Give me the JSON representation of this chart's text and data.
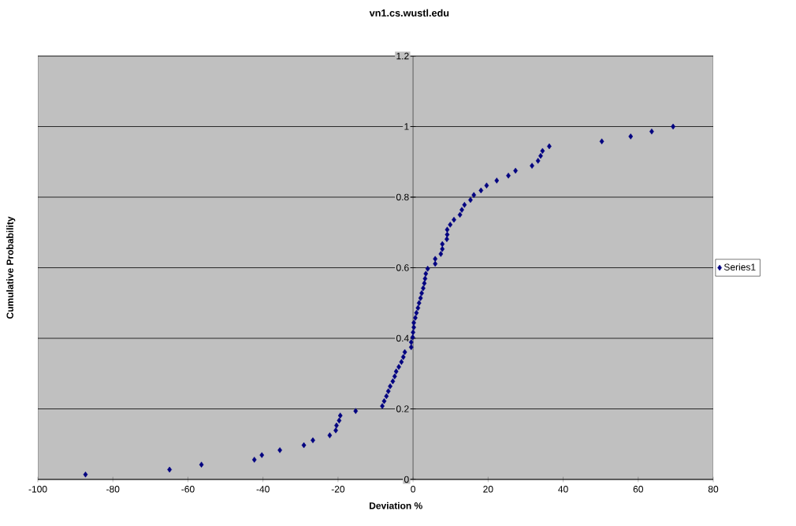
{
  "chart_data": {
    "type": "scatter",
    "title": "vn1.cs.wustl.edu",
    "xlabel": "Deviation %",
    "ylabel": "Cumulative Probability",
    "xlim": [
      -100,
      80
    ],
    "ylim": [
      0,
      1.2
    ],
    "xticks": [
      -100,
      -80,
      -60,
      -40,
      -20,
      0,
      20,
      40,
      60,
      80
    ],
    "yticks": [
      0,
      0.2,
      0.4,
      0.6,
      0.8,
      1,
      1.2
    ],
    "grid": "y",
    "legend": "right",
    "marker": "diamond",
    "series": [
      {
        "name": "Series1",
        "color": "#000080",
        "x": [
          -87.3,
          -64.9,
          -56.4,
          -42.3,
          -40.3,
          -35.5,
          -29.1,
          -26.7,
          -22.2,
          -20.6,
          -20.4,
          -19.7,
          -19.4,
          -15.3,
          -8.2,
          -7.7,
          -7.1,
          -6.6,
          -6.1,
          -5.4,
          -4.9,
          -4.5,
          -3.8,
          -3.1,
          -2.6,
          -2.2,
          -0.5,
          -0.5,
          -0.1,
          0,
          0.2,
          0.2,
          0.6,
          0.9,
          1.3,
          1.6,
          2.0,
          2.3,
          2.7,
          3.0,
          3.2,
          3.4,
          3.9,
          5.9,
          5.9,
          7.4,
          7.8,
          7.8,
          9.0,
          9.1,
          9.1,
          9.9,
          10.9,
          12.5,
          13.0,
          13.7,
          15.3,
          16.2,
          18.1,
          19.6,
          22.3,
          25.4,
          27.3,
          31.7,
          33.3,
          34.0,
          34.5,
          36.3,
          50.3,
          58.0,
          63.6,
          69.3
        ],
        "values": [
          0.014,
          0.028,
          0.042,
          0.056,
          0.069,
          0.083,
          0.097,
          0.111,
          0.125,
          0.139,
          0.153,
          0.167,
          0.181,
          0.194,
          0.208,
          0.222,
          0.236,
          0.25,
          0.264,
          0.278,
          0.292,
          0.306,
          0.319,
          0.333,
          0.347,
          0.361,
          0.375,
          0.389,
          0.403,
          0.417,
          0.431,
          0.444,
          0.458,
          0.472,
          0.486,
          0.5,
          0.514,
          0.528,
          0.542,
          0.556,
          0.569,
          0.583,
          0.597,
          0.611,
          0.625,
          0.639,
          0.653,
          0.667,
          0.681,
          0.694,
          0.708,
          0.722,
          0.736,
          0.75,
          0.764,
          0.778,
          0.792,
          0.806,
          0.819,
          0.833,
          0.847,
          0.861,
          0.875,
          0.889,
          0.903,
          0.917,
          0.931,
          0.944,
          0.958,
          0.972,
          0.986,
          1.0
        ]
      }
    ]
  }
}
